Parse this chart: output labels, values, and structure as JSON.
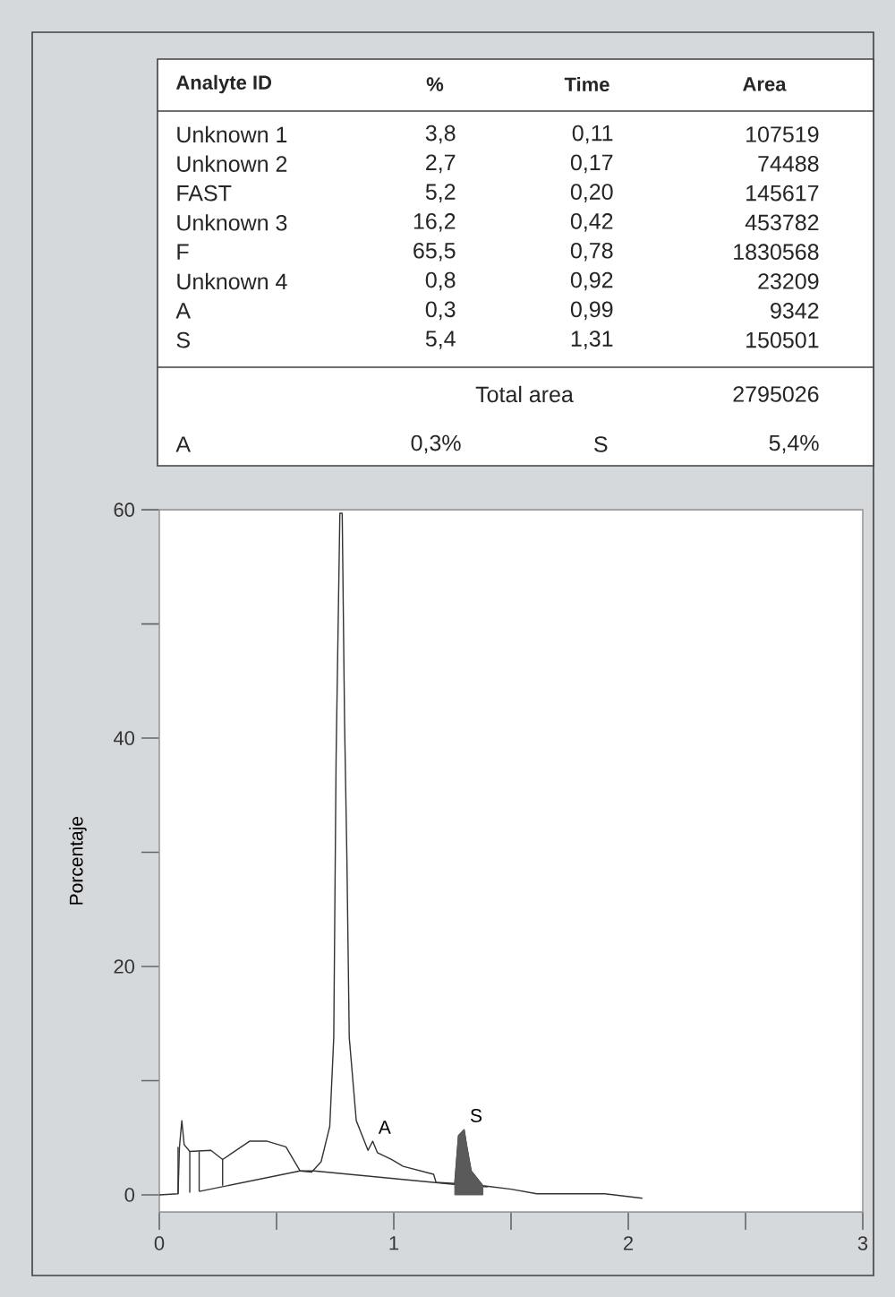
{
  "chart_data": {
    "type": "line",
    "ylabel": "Porcentaje",
    "xlim": [
      0,
      3
    ],
    "ylim": [
      -1.5,
      60
    ],
    "xticks": [
      0,
      {
        "value": 0.5,
        "label": null
      },
      1,
      {
        "value": 1.5,
        "label": null
      },
      2,
      {
        "value": 2.5,
        "label": null
      },
      3
    ],
    "yticks": [
      0,
      {
        "value": 10,
        "label": null
      },
      20,
      {
        "value": 30,
        "label": null
      },
      40,
      {
        "value": 50,
        "label": null
      },
      60
    ],
    "grid": false,
    "marker": "none",
    "line_style": "solid",
    "annotations": [
      "Analyte ID",
      "%",
      "Time",
      "Area",
      "Unknown 1",
      "3,8",
      "0,11",
      "107519",
      "Unknown 2",
      "2,7",
      "0,17",
      "74488",
      "FAST",
      "5,2",
      "0,20",
      "145617",
      "Unknown 3",
      "16,2",
      "0,42",
      "453782",
      "F",
      "65,5",
      "0,78",
      "1830568",
      "Unknown 4",
      "0,8",
      "0,92",
      "23209",
      "A",
      "0,3",
      "0,99",
      "9342",
      "S",
      "5,4",
      "1,31",
      "150501",
      "Total area",
      "2795026",
      "A",
      "0,3%",
      "S",
      "5,4%",
      {
        "text": "A",
        "x": 0.91,
        "y": 4.7
      },
      {
        "text": "S",
        "x": 1.3,
        "y": 5.7
      }
    ],
    "series": [
      {
        "color": "#333333",
        "x": [
          0,
          0.08,
          0.086,
          0.096,
          0.106,
          0.13,
          0.22,
          0.27,
          0.385,
          0.46,
          0.54,
          0.6,
          0.65,
          0.69,
          0.727,
          0.744,
          0.754,
          0.77,
          0.78,
          0.79,
          0.8,
          0.81,
          0.84,
          0.89,
          0.91,
          0.93,
          0.99,
          1.04,
          1.17,
          1.18,
          1.26,
          1.276,
          1.3,
          1.31,
          1.33,
          1.38,
          1.5,
          1.61,
          1.9,
          2.06
        ],
        "values": [
          0,
          0.1,
          4.2,
          6.5,
          4.4,
          3.8,
          3.9,
          3.1,
          4.7,
          4.7,
          4.2,
          2.1,
          2.0,
          2.9,
          6.0,
          13.8,
          38.3,
          59.7,
          59.7,
          41.5,
          29.5,
          13.8,
          6.5,
          3.9,
          4.7,
          3.7,
          3.1,
          2.5,
          1.8,
          1.1,
          1.0,
          5.2,
          5.7,
          4.4,
          2.1,
          0.8,
          0.5,
          0.1,
          0.1,
          -0.3
        ]
      },
      {
        "color": "#333333",
        "x": [
          0.17,
          0.6,
          0.66,
          1.27,
          1.4
        ],
        "values": [
          0.3,
          2.1,
          2.1,
          0.9,
          0.7
        ]
      },
      {
        "color": "#333333",
        "x": [
          0.08,
          0.08
        ],
        "values": [
          0.1,
          4.2
        ]
      },
      {
        "color": "#333333",
        "x": [
          0.13,
          0.13
        ],
        "values": [
          0.2,
          3.8
        ]
      },
      {
        "color": "#333333",
        "x": [
          0.17,
          0.17
        ],
        "values": [
          0.3,
          3.8
        ]
      },
      {
        "color": "#333333",
        "x": [
          0.27,
          0.27
        ],
        "values": [
          0.8,
          3.1
        ]
      },
      {
        "type": "area",
        "color": "#5a5a5a",
        "x": [
          1.26,
          1.276,
          1.3,
          1.31,
          1.33,
          1.38
        ],
        "values": [
          1.0,
          5.2,
          5.7,
          4.4,
          2.1,
          0.8
        ]
      }
    ]
  }
}
